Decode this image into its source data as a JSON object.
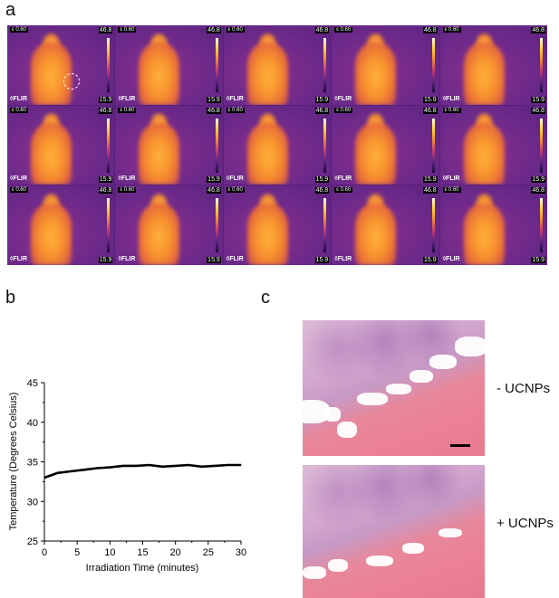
{
  "panels": {
    "a": "a",
    "b": "b",
    "c": "c"
  },
  "thermal": {
    "emissivity": "ε 0.60",
    "max_temp": "46.8",
    "min_temp": "15.9",
    "logo": "◊FLIR",
    "colorbar_icon": "ironbow-colorbar",
    "rows": 3,
    "cols": 5
  },
  "chart_data": {
    "type": "line",
    "title": "",
    "xlabel": "Irradiation Time (minutes)",
    "ylabel": "Temperature (Degrees Celsius)",
    "xlim": [
      0,
      30
    ],
    "ylim": [
      25,
      45
    ],
    "xticks": [
      0,
      5,
      10,
      15,
      20,
      25,
      30
    ],
    "yticks": [
      25,
      30,
      35,
      40,
      45
    ],
    "x": [
      0,
      2,
      4,
      6,
      8,
      10,
      12,
      14,
      16,
      18,
      20,
      22,
      24,
      26,
      28,
      30
    ],
    "series": [
      {
        "values": [
          33.0,
          33.6,
          33.8,
          34.0,
          34.2,
          34.3,
          34.5,
          34.5,
          34.6,
          34.4,
          34.5,
          34.6,
          34.4,
          34.5,
          34.6,
          34.6
        ]
      }
    ]
  },
  "histology": {
    "top_label": "- UCNPs",
    "bottom_label": "+ UCNPs"
  }
}
